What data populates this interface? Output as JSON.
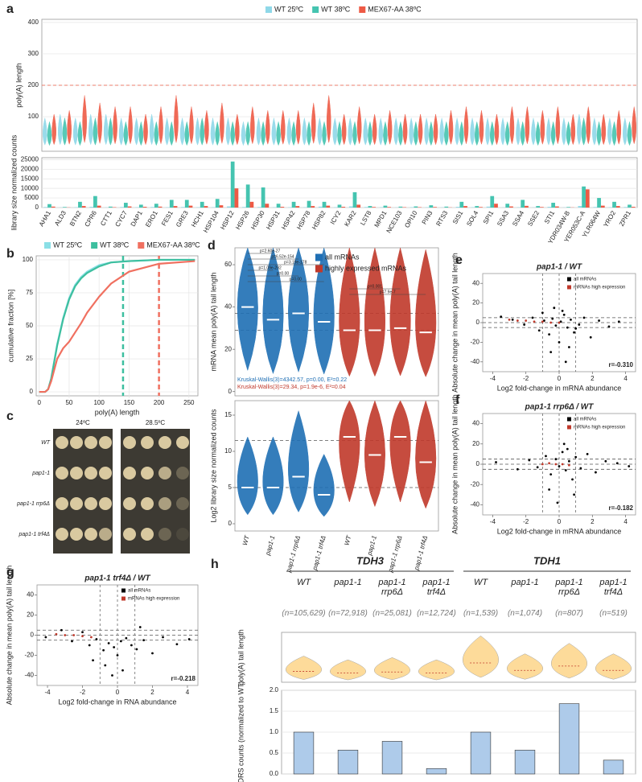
{
  "chart_data": [
    {
      "panel": "a",
      "type": "violin",
      "y_label": "poly(A) length",
      "ylim": [
        -10,
        410
      ],
      "yticks": [
        100,
        200,
        300,
        400
      ],
      "grid": true,
      "hlines": [
        200
      ],
      "hline_color": "#ee5a45",
      "legend": "top",
      "series": [
        {
          "name": "WT 25ºC",
          "color": "#8fd8e8",
          "values": [
            40,
            45,
            40,
            45,
            45,
            40,
            40,
            45,
            40,
            40,
            40,
            40,
            40,
            35,
            40,
            40,
            40,
            40,
            40,
            40,
            40,
            40,
            40,
            40,
            40,
            40,
            40,
            40,
            40,
            40,
            40,
            40,
            40,
            40,
            40,
            45,
            40,
            40,
            40
          ]
        },
        {
          "name": "WT 38ºC",
          "color": "#45c4b0",
          "values": [
            35,
            40,
            35,
            40,
            40,
            35,
            35,
            35,
            35,
            35,
            40,
            35,
            35,
            35,
            35,
            35,
            35,
            35,
            35,
            35,
            35,
            35,
            35,
            35,
            35,
            35,
            35,
            35,
            35,
            35,
            35,
            35,
            35,
            35,
            35,
            40,
            35,
            35,
            35
          ]
        },
        {
          "name": "MEX67-AA 38ºC",
          "color": "#ee5a45",
          "values": [
            45,
            50,
            70,
            60,
            55,
            55,
            45,
            55,
            70,
            55,
            50,
            60,
            45,
            55,
            50,
            50,
            50,
            60,
            70,
            45,
            55,
            45,
            50,
            45,
            45,
            45,
            50,
            55,
            50,
            45,
            55,
            55,
            50,
            55,
            45,
            55,
            45,
            50,
            55
          ]
        }
      ]
    },
    {
      "type": "bar",
      "y_label": "library size normalized counts",
      "ylim": [
        0,
        26000
      ],
      "yticks": [
        0,
        5000,
        10000,
        15000,
        20000,
        25000
      ],
      "grid": true,
      "categories": [
        "AHA1",
        "ALD3",
        "BTN2",
        "CPR6",
        "CTT1",
        "CYC7",
        "DAP1",
        "ERO1",
        "FES1",
        "GRE3",
        "HCH1",
        "HSP104",
        "HSP12",
        "HSP26",
        "HSP30",
        "HSP31",
        "HSP42",
        "HSP78",
        "HSP82",
        "ICY2",
        "KAR2",
        "LST8",
        "MPD1",
        "NCE103",
        "OPI10",
        "PIN3",
        "RTS3",
        "SIS1",
        "SOL4",
        "SPI1",
        "SSA3",
        "SSA4",
        "SSE2",
        "STI1",
        "YDR034W-B",
        "YER053C-A",
        "YLR064W",
        "YRO2",
        "ZPR1"
      ],
      "series": [
        {
          "name": "WT 25ºC",
          "color": "#8fd8e8",
          "values": [
            300,
            100,
            200,
            400,
            100,
            300,
            200,
            300,
            200,
            300,
            200,
            200,
            600,
            300,
            300,
            200,
            200,
            200,
            500,
            200,
            600,
            300,
            200,
            100,
            200,
            200,
            100,
            400,
            200,
            500,
            100,
            200,
            100,
            400,
            100,
            800,
            300,
            200,
            300
          ]
        },
        {
          "name": "WT 38ºC",
          "color": "#45c4b0",
          "values": [
            1800,
            300,
            3000,
            6000,
            500,
            2500,
            1500,
            2000,
            4000,
            4000,
            3000,
            4500,
            24000,
            12000,
            10500,
            2000,
            3000,
            3500,
            3000,
            1500,
            8000,
            800,
            1000,
            500,
            600,
            1200,
            500,
            3000,
            800,
            6000,
            2000,
            4000,
            800,
            2500,
            300,
            11000,
            5000,
            3000,
            1500
          ]
        },
        {
          "name": "MEX67-AA 38ºC",
          "color": "#ee5a45",
          "values": [
            500,
            100,
            800,
            1000,
            200,
            600,
            400,
            500,
            800,
            1000,
            800,
            1200,
            10000,
            3000,
            2000,
            400,
            800,
            800,
            1000,
            400,
            1500,
            300,
            300,
            200,
            200,
            300,
            100,
            800,
            300,
            2000,
            600,
            900,
            300,
            600,
            100,
            9500,
            1000,
            800,
            400
          ]
        }
      ]
    },
    {
      "panel": "b",
      "type": "line",
      "x_label": "poly(A) length",
      "y_label": "cumulative fraction [%]",
      "xlim": [
        -5,
        265
      ],
      "ylim": [
        -3,
        103
      ],
      "xticks": [
        0,
        50,
        100,
        150,
        200,
        250
      ],
      "yticks": [
        0,
        25,
        50,
        75,
        100
      ],
      "grid": true,
      "x": [
        0,
        10,
        15,
        20,
        30,
        40,
        50,
        60,
        70,
        80,
        100,
        120,
        150,
        200,
        260
      ],
      "vlines": [
        {
          "value": 140,
          "color": "#3dbf9f"
        },
        {
          "value": 200,
          "color": "#f07060"
        }
      ],
      "series": [
        {
          "name": "WT 25ºC",
          "color": "#8adfe6",
          "values": [
            0,
            0,
            2,
            10,
            36,
            56,
            71,
            81,
            87,
            91,
            96,
            98,
            99,
            100,
            100
          ]
        },
        {
          "name": "WT 38ºC",
          "color": "#3dbf9f",
          "values": [
            0,
            0,
            2,
            10,
            35,
            55,
            70,
            80,
            86,
            90,
            95,
            98,
            99,
            100,
            100
          ]
        },
        {
          "name": "MEX67-AA 38ºC",
          "color": "#f07060",
          "values": [
            0,
            0,
            2,
            8,
            25,
            33,
            38,
            45,
            52,
            60,
            72,
            82,
            91,
            97,
            99
          ]
        }
      ]
    },
    {
      "panel": "d",
      "type": "violin",
      "y_label": "mRNA mean poly(A) tail length",
      "ylim": [
        -2,
        68
      ],
      "yticks": [
        0,
        20,
        40,
        60
      ],
      "hlines": [
        37,
        29
      ],
      "series": [
        {
          "name": "all mRNAs",
          "color": "#1f6fb4",
          "values": [
            40,
            34,
            37,
            33,
            null,
            null,
            null,
            null
          ]
        },
        {
          "name": "highly expressed mRNAs",
          "color": "#c0392b",
          "values": [
            null,
            null,
            null,
            null,
            29,
            29,
            30,
            28
          ]
        }
      ],
      "annotations": [
        "p=2.60e-27",
        "p=6.52e-154",
        "p=3.19e-178",
        "p=1.09e-292",
        "p=0.00",
        "p=0.00",
        "p=0.001",
        "p=7.9e-7"
      ],
      "stats": [
        "Kruskal-Wallis(3)=4342.57, p=0.00, E²=0.22",
        "Kruskal-Wallis(3)=29.34, p=1.9e-6, E²=0.04"
      ]
    },
    {
      "type": "violin",
      "y_label": "Log2 library size normalized counts",
      "ylim": [
        -1,
        17
      ],
      "yticks": [
        0,
        5,
        10,
        15
      ],
      "hlines": [
        5,
        11.5
      ],
      "categories": [
        "WT",
        "pap1-1",
        "pap1-1 rrp6Δ",
        "pap1-1 trf4Δ",
        "WT",
        "pap1-1",
        "pap1-1 rrp6Δ",
        "pap1-1 trf4Δ"
      ],
      "series": [
        {
          "name": "all mRNAs",
          "color": "#1f6fb4",
          "values": [
            5,
            5,
            6.5,
            4,
            null,
            null,
            null,
            null
          ]
        },
        {
          "name": "highly expressed mRNAs",
          "color": "#c0392b",
          "values": [
            null,
            null,
            null,
            null,
            12,
            9.5,
            12,
            8.5
          ]
        }
      ]
    },
    {
      "panel": "e",
      "type": "scatter",
      "title": "pap1-1 / WT",
      "x_label": "Log2 fold-change in mRNA abundance",
      "y_label": "Absolute change in mean poly(A) tail length",
      "xlim": [
        -4.6,
        4.6
      ],
      "ylim": [
        -50,
        50
      ],
      "xticks": [
        -4,
        -2,
        0,
        2,
        4
      ],
      "yticks": [
        -40,
        -20,
        0,
        20,
        40
      ],
      "vlines": [
        -1,
        0,
        1
      ],
      "hlines": [
        -5,
        0,
        5
      ],
      "annotation": "r=-0.310",
      "series": [
        {
          "name": "all mRNAs",
          "color": "#000000",
          "x": [
            -3.5,
            -2.8,
            -2.1,
            -1.6,
            -1.2,
            -0.9,
            -0.6,
            -0.4,
            -0.2,
            0,
            0.1,
            0.3,
            0.5,
            0.7,
            0.9,
            1.2,
            1.5,
            1.9,
            2.4,
            3.0,
            3.6,
            -0.5,
            0.2,
            0.6,
            -1.0,
            1.0,
            -0.3,
            0.4
          ],
          "y": [
            6,
            3,
            -2,
            5,
            -8,
            2,
            -12,
            4,
            -3,
            -20,
            1,
            8,
            -5,
            3,
            -10,
            -2,
            5,
            -15,
            2,
            -4,
            1,
            -30,
            12,
            -25,
            10,
            -6,
            15,
            -40
          ]
        },
        {
          "name": "mRNAs high expression",
          "color": "#c0392b",
          "x": [
            -3,
            -2.5,
            -2,
            -1.5,
            -1,
            -0.5,
            0
          ],
          "y": [
            3,
            2,
            2,
            1,
            1,
            0,
            0
          ]
        }
      ]
    },
    {
      "panel": "f",
      "type": "scatter",
      "title": "pap1-1 rrp6Δ / WT",
      "x_label": "Log2 fold-change in mRNA abundance",
      "y_label": "Absolute change in mean poly(A) tail length",
      "xlim": [
        -4.6,
        4.6
      ],
      "ylim": [
        -50,
        50
      ],
      "xticks": [
        -4,
        -2,
        0,
        2,
        4
      ],
      "yticks": [
        -40,
        -20,
        0,
        20,
        40
      ],
      "vlines": [
        -1,
        0,
        1
      ],
      "hlines": [
        -5,
        0,
        5
      ],
      "annotation": "r=-0.182",
      "series": [
        {
          "name": "all mRNAs",
          "color": "#000000",
          "x": [
            -3.8,
            -2.5,
            -1.8,
            -1.3,
            -0.8,
            -0.5,
            -0.2,
            0,
            0.2,
            0.4,
            0.6,
            0.8,
            1.0,
            1.3,
            1.7,
            2.2,
            2.8,
            3.5,
            4.2,
            -0.6,
            0.3,
            0.9,
            -0.1,
            0.5
          ],
          "y": [
            2,
            -5,
            4,
            -3,
            8,
            -10,
            5,
            -2,
            12,
            -6,
            3,
            -15,
            7,
            -4,
            10,
            -8,
            3,
            1,
            -2,
            -25,
            20,
            -30,
            -38,
            15
          ]
        },
        {
          "name": "mRNAs high expression",
          "color": "#c0392b",
          "x": [
            -1,
            -0.6,
            -0.2,
            0.2,
            0.6
          ],
          "y": [
            0,
            1,
            0,
            0,
            -1
          ]
        }
      ]
    },
    {
      "panel": "g",
      "type": "scatter",
      "title": "pap1-1 trf4Δ / WT",
      "x_label": "Log2 fold-change in RNA abundance",
      "y_label": "Absolute change in mean poly(A) tail length",
      "xlim": [
        -4.6,
        4.6
      ],
      "ylim": [
        -50,
        50
      ],
      "xticks": [
        -4,
        -2,
        0,
        2,
        4
      ],
      "yticks": [
        -40,
        -20,
        0,
        20,
        40
      ],
      "vlines": [
        -1,
        0,
        1
      ],
      "hlines": [
        -5,
        0,
        5
      ],
      "annotation": "r=-0.218",
      "series": [
        {
          "name": "all mRNAs",
          "color": "#000000",
          "x": [
            -4.1,
            -3.2,
            -2.6,
            -2.0,
            -1.6,
            -1.2,
            -0.8,
            -0.5,
            -0.2,
            0,
            0.2,
            0.5,
            0.8,
            1.1,
            1.5,
            2.0,
            2.6,
            3.4,
            4.1,
            -0.7,
            -1.4,
            0.3,
            -0.3,
            1.3
          ],
          "y": [
            -2,
            5,
            -6,
            3,
            -10,
            -4,
            -15,
            -8,
            -12,
            -20,
            -6,
            -3,
            -10,
            -14,
            -5,
            -18,
            -2,
            -9,
            -4,
            -30,
            -25,
            -35,
            -40,
            8
          ]
        },
        {
          "name": "mRNAs high expression",
          "color": "#c0392b",
          "x": [
            -3.5,
            -3,
            -2.5,
            -2,
            -1.5
          ],
          "y": [
            1,
            0,
            0,
            -1,
            -2
          ]
        }
      ]
    },
    {
      "panel": "h",
      "type": "violin",
      "y_label": "poly(A) tail length",
      "ylim": [
        0,
        160
      ],
      "color": "#fdd890",
      "groups": [
        "TDH3",
        "TDH1"
      ],
      "categories": [
        "WT",
        "pap1-1",
        "pap1-1 rrp6Δ",
        "pap1-1 trf4Δ",
        "WT",
        "pap1-1",
        "pap1-1 rrp6Δ",
        "pap1-1 trf4Δ"
      ],
      "n_labels": [
        "(n=105,629)",
        "(n=72,918)",
        "(n=25,081)",
        "(n=12,724)",
        "(n=1,539)",
        "(n=1,074)",
        "(n=807)",
        "(n=519)"
      ],
      "values": [
        35,
        30,
        33,
        30,
        62,
        38,
        52,
        38
      ]
    },
    {
      "type": "bar",
      "y_label": "DRS counts (normalized to WT)",
      "ylim": [
        0,
        2.0
      ],
      "color": "#aecbea",
      "grid": true,
      "yticks": [
        {
          "value": 0,
          "label": "0.0"
        },
        {
          "value": 0.5,
          "label": "0.5"
        },
        {
          "value": 1,
          "label": "1.0"
        },
        {
          "value": 1.5,
          "label": "1.5"
        },
        {
          "value": 2,
          "label": "2.0"
        }
      ],
      "values": [
        1.0,
        0.57,
        0.78,
        0.13,
        1.0,
        0.57,
        1.68,
        0.33
      ]
    }
  ],
  "spot_assay": {
    "panel": "c",
    "columns": [
      "24ºC",
      "28.5ºC"
    ],
    "rows": [
      "WT",
      "pap1-1",
      "pap1-1 rrp6Δ",
      "pap1-1 trf4Δ"
    ]
  }
}
